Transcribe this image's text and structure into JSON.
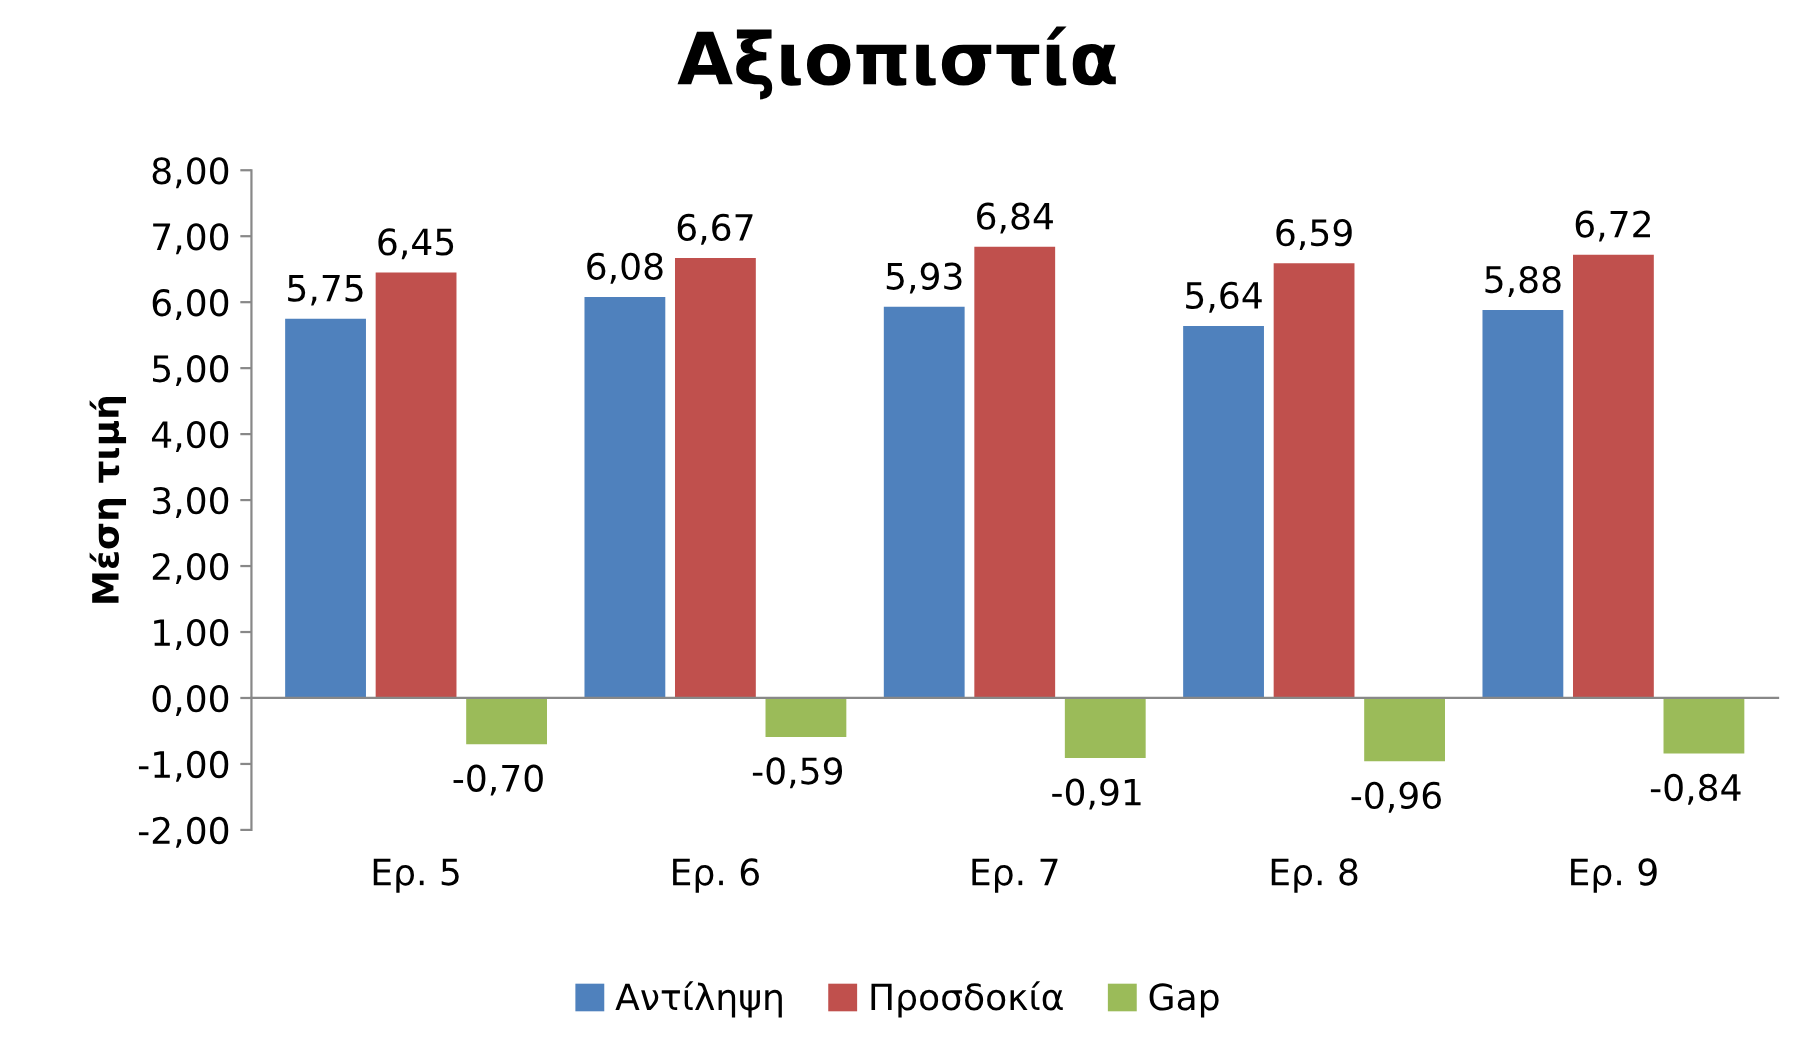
{
  "chart_data": {
    "type": "bar",
    "title": "Αξιοπιστία",
    "ylabel": "Μέση τιμή",
    "categories": [
      "Ερ. 5",
      "Ερ. 6",
      "Ερ. 7",
      "Ερ. 8",
      "Ερ. 9"
    ],
    "series": [
      {
        "name": "Αντίληψη",
        "color": "#4f81bd",
        "values": [
          5.75,
          6.08,
          5.93,
          5.64,
          5.88
        ],
        "value_labels": [
          "5,75",
          "6,08",
          "5,93",
          "5,64",
          "5,88"
        ]
      },
      {
        "name": "Προσδοκία",
        "color": "#c0504d",
        "values": [
          6.45,
          6.67,
          6.84,
          6.59,
          6.72
        ],
        "value_labels": [
          "6,45",
          "6,67",
          "6,84",
          "6,59",
          "6,72"
        ]
      },
      {
        "name": "Gap",
        "color": "#9bbb59",
        "values": [
          -0.7,
          -0.59,
          -0.91,
          -0.96,
          -0.84
        ],
        "value_labels": [
          "-0,70",
          "-0,59",
          "-0,91",
          "-0,96",
          "-0,84"
        ]
      }
    ],
    "ylim": [
      -2,
      8
    ],
    "yticks": [
      {
        "value": -2,
        "label": "-2,00"
      },
      {
        "value": -1,
        "label": "-1,00"
      },
      {
        "value": 0,
        "label": "0,00"
      },
      {
        "value": 1,
        "label": "1,00"
      },
      {
        "value": 2,
        "label": "2,00"
      },
      {
        "value": 3,
        "label": "3,00"
      },
      {
        "value": 4,
        "label": "4,00"
      },
      {
        "value": 5,
        "label": "5,00"
      },
      {
        "value": 6,
        "label": "6,00"
      },
      {
        "value": 7,
        "label": "7,00"
      },
      {
        "value": 8,
        "label": "8,00"
      }
    ],
    "legend": "bottom"
  }
}
